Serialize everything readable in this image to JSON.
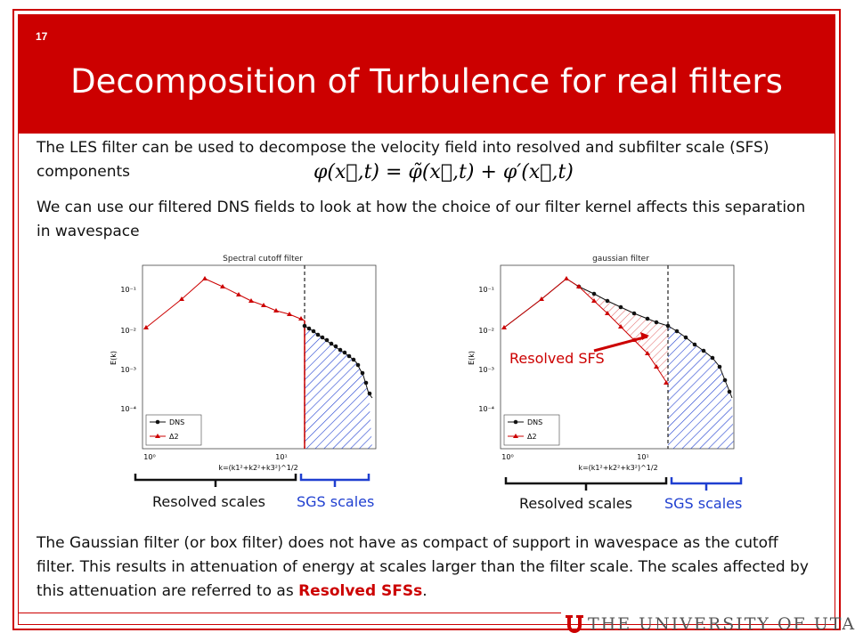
{
  "slide": {
    "number": "17",
    "title": "Decomposition of Turbulence for real filters",
    "para1": "The LES filter can be used to decompose the velocity field into resolved and subfilter scale (SFS) components",
    "equation": "φ(x⃗,t) = φ̃(x⃗,t) + φ′(x⃗,t)",
    "para2": "We can use our filtered DNS fields to look at how the choice of our filter kernel affects this separation in wavespace",
    "para3_pre": "The Gaussian filter (or box filter) does not have as compact of support in wavespace as the cutoff filter.  This results in attenuation of energy at scales larger than the filter scale.  The scales affected by this attenuation are referred to as ",
    "para3_highlight": "Resolved SFSs",
    "para3_post": "."
  },
  "charts": [
    {
      "title": "Spectral cutoff filter",
      "ylabel": "E(k)",
      "xlabel": "k=(k1²+k2²+k3²)^1/2",
      "yticks": [
        "10⁻¹",
        "10⁻²",
        "10⁻³",
        "10⁻⁴"
      ],
      "xticks": [
        "10⁰",
        "10¹"
      ],
      "legend": [
        "DNS",
        "Δ2"
      ],
      "resolved_label": "Resolved scales",
      "sgs_label": "SGS scales"
    },
    {
      "title": "gaussian filter",
      "ylabel": "E(k)",
      "xlabel": "k=(k1²+k2²+k3²)^1/2",
      "yticks": [
        "10⁻¹",
        "10⁻²",
        "10⁻³",
        "10⁻⁴"
      ],
      "xticks": [
        "10⁰",
        "10¹"
      ],
      "legend": [
        "DNS",
        "Δ2"
      ],
      "annotation": "Resolved SFS",
      "resolved_label": "Resolved scales",
      "sgs_label": "SGS scales"
    }
  ],
  "university": "THE UNIVERSITY OF UTAH",
  "colors": {
    "brand_red": "#cc0000",
    "sgs_blue": "#1f3fd0",
    "text": "#111111"
  }
}
